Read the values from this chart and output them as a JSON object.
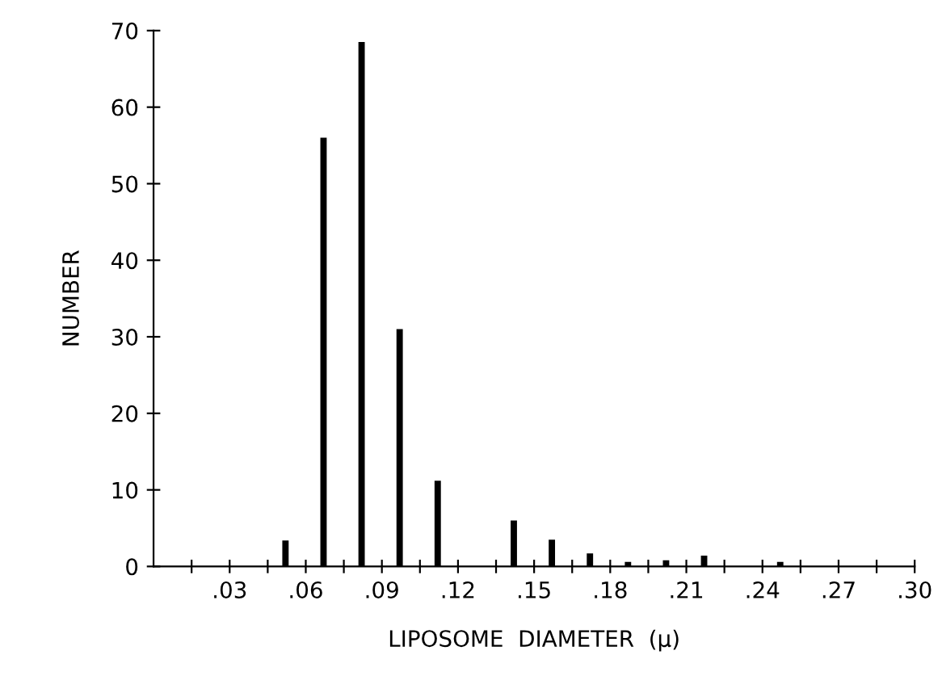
{
  "chart_data": {
    "type": "bar",
    "xlabel": "LIPOSOME  DIAMETER  (μ)",
    "ylabel": "NUMBER",
    "x": [
      0.052,
      0.067,
      0.082,
      0.097,
      0.112,
      0.142,
      0.157,
      0.172,
      0.187,
      0.202,
      0.217,
      0.247
    ],
    "values": [
      3.4,
      56,
      68.5,
      31,
      11.2,
      6,
      3.5,
      1.7,
      0.6,
      0.8,
      1.4,
      0.6
    ],
    "color": "#000000",
    "xlim": [
      0,
      0.3
    ],
    "xticks": [
      {
        "value": 0.015,
        "label": null
      },
      {
        "value": 0.03,
        "label": ".03"
      },
      {
        "value": 0.045,
        "label": null
      },
      {
        "value": 0.06,
        "label": ".06"
      },
      {
        "value": 0.075,
        "label": null
      },
      {
        "value": 0.09,
        "label": ".09"
      },
      {
        "value": 0.105,
        "label": null
      },
      {
        "value": 0.12,
        "label": ".12"
      },
      {
        "value": 0.135,
        "label": null
      },
      {
        "value": 0.15,
        "label": ".15"
      },
      {
        "value": 0.165,
        "label": null
      },
      {
        "value": 0.18,
        "label": ".18"
      },
      {
        "value": 0.195,
        "label": null
      },
      {
        "value": 0.21,
        "label": ".21"
      },
      {
        "value": 0.225,
        "label": null
      },
      {
        "value": 0.24,
        "label": ".24"
      },
      {
        "value": 0.255,
        "label": null
      },
      {
        "value": 0.27,
        "label": ".27"
      },
      {
        "value": 0.285,
        "label": null
      },
      {
        "value": 0.3,
        "label": ".30"
      }
    ],
    "ylim": [
      0,
      70
    ],
    "yticks": [
      0,
      10,
      20,
      30,
      40,
      50,
      60,
      70
    ],
    "grid": false,
    "legend": false
  }
}
